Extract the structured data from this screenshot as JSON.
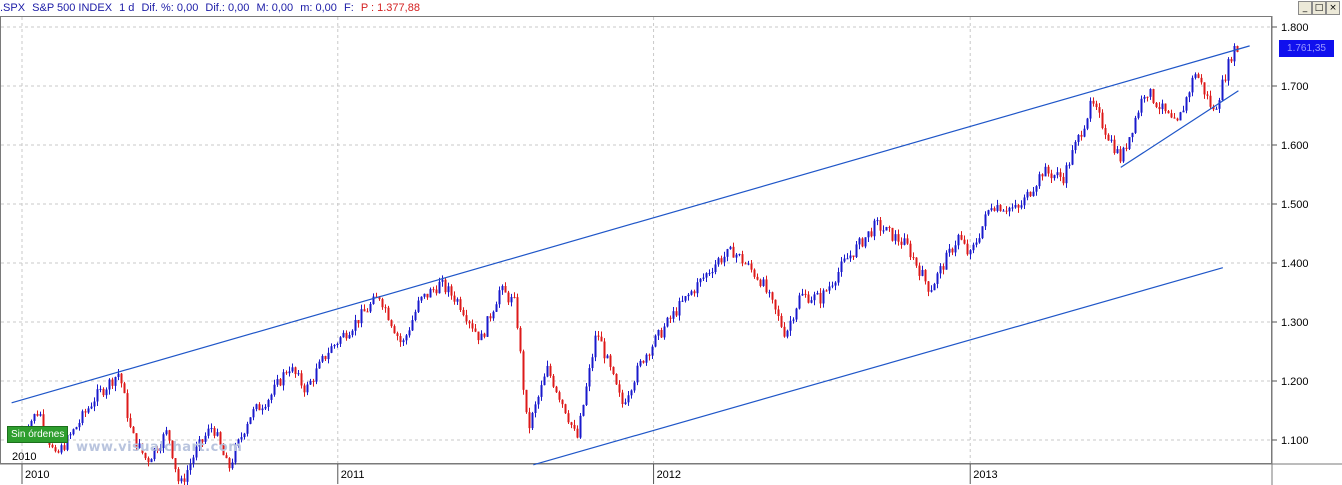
{
  "header": {
    "symbol": ".SPX",
    "name": "S&P 500 INDEX",
    "period": "1 d",
    "dif_pct": "Dif. %: 0,00",
    "dif": "Dif.: 0,00",
    "max": "M: 0,00",
    "min": "m: 0,00",
    "f": "F:",
    "price": "P : 1.377,88"
  },
  "window_buttons": [
    "_",
    "□",
    "×"
  ],
  "last_price_label": "1.761,35",
  "orders_badge": "Sin órdenes",
  "watermark": "www.visualchart.com",
  "colors": {
    "up": "#1a1acc",
    "down": "#dd1a1a",
    "trendline": "#1f56c8",
    "grid": "#c8c8c8"
  },
  "chart_data": {
    "type": "candlestick",
    "title": ".SPX - S&P 500 INDEX - 1 d",
    "y_axis": {
      "ticks": [
        "1.100",
        "1.200",
        "1.300",
        "1.400",
        "1.500",
        "1.600",
        "1.700",
        "1.800"
      ],
      "ylim": [
        1060,
        1810
      ],
      "position": "right"
    },
    "x_axis": {
      "year_labels": [
        "2010",
        "2011",
        "2012",
        "2013"
      ]
    },
    "grid": true,
    "close_path": [
      [
        "2010-01-01",
        1115
      ],
      [
        "2010-01-20",
        1150
      ],
      [
        "2010-02-08",
        1070
      ],
      [
        "2010-03-01",
        1115
      ],
      [
        "2010-03-25",
        1170
      ],
      [
        "2010-04-23",
        1215
      ],
      [
        "2010-05-07",
        1110
      ],
      [
        "2010-05-25",
        1065
      ],
      [
        "2010-06-18",
        1115
      ],
      [
        "2010-07-02",
        1020
      ],
      [
        "2010-07-20",
        1080
      ],
      [
        "2010-08-09",
        1125
      ],
      [
        "2010-08-27",
        1050
      ],
      [
        "2010-09-20",
        1140
      ],
      [
        "2010-10-15",
        1175
      ],
      [
        "2010-11-05",
        1225
      ],
      [
        "2010-11-25",
        1185
      ],
      [
        "2010-12-20",
        1250
      ],
      [
        "2011-01-18",
        1295
      ],
      [
        "2011-02-18",
        1345
      ],
      [
        "2011-03-16",
        1260
      ],
      [
        "2011-04-05",
        1335
      ],
      [
        "2011-04-29",
        1365
      ],
      [
        "2011-05-20",
        1335
      ],
      [
        "2011-06-15",
        1270
      ],
      [
        "2011-07-07",
        1355
      ],
      [
        "2011-07-25",
        1330
      ],
      [
        "2011-08-08",
        1115
      ],
      [
        "2011-08-31",
        1220
      ],
      [
        "2011-09-20",
        1155
      ],
      [
        "2011-10-04",
        1100
      ],
      [
        "2011-10-27",
        1285
      ],
      [
        "2011-11-25",
        1160
      ],
      [
        "2011-12-20",
        1240
      ],
      [
        "2012-01-27",
        1320
      ],
      [
        "2012-03-15",
        1405
      ],
      [
        "2012-04-02",
        1420
      ],
      [
        "2012-05-04",
        1370
      ],
      [
        "2012-06-01",
        1280
      ],
      [
        "2012-06-18",
        1345
      ],
      [
        "2012-07-12",
        1340
      ],
      [
        "2012-08-10",
        1405
      ],
      [
        "2012-09-14",
        1465
      ],
      [
        "2012-10-19",
        1430
      ],
      [
        "2012-11-15",
        1355
      ],
      [
        "2012-12-18",
        1445
      ],
      [
        "2012-12-31",
        1410
      ],
      [
        "2013-01-25",
        1500
      ],
      [
        "2013-02-25",
        1490
      ],
      [
        "2013-03-25",
        1555
      ],
      [
        "2013-04-18",
        1545
      ],
      [
        "2013-05-21",
        1670
      ],
      [
        "2013-06-24",
        1575
      ],
      [
        "2013-07-22",
        1695
      ],
      [
        "2013-08-27",
        1630
      ],
      [
        "2013-09-18",
        1725
      ],
      [
        "2013-10-09",
        1655
      ],
      [
        "2013-11-01",
        1765
      ],
      [
        "2013-11-08",
        1760
      ]
    ],
    "trendlines": [
      {
        "from": [
          "2009-12-20",
          1163
        ],
        "to": [
          "2013-11-20",
          1768
        ]
      },
      {
        "from": [
          "2011-08-15",
          1058
        ],
        "to": [
          "2013-10-20",
          1392
        ]
      },
      {
        "from": [
          "2013-06-24",
          1562
        ],
        "to": [
          "2013-11-07",
          1692
        ]
      }
    ]
  }
}
